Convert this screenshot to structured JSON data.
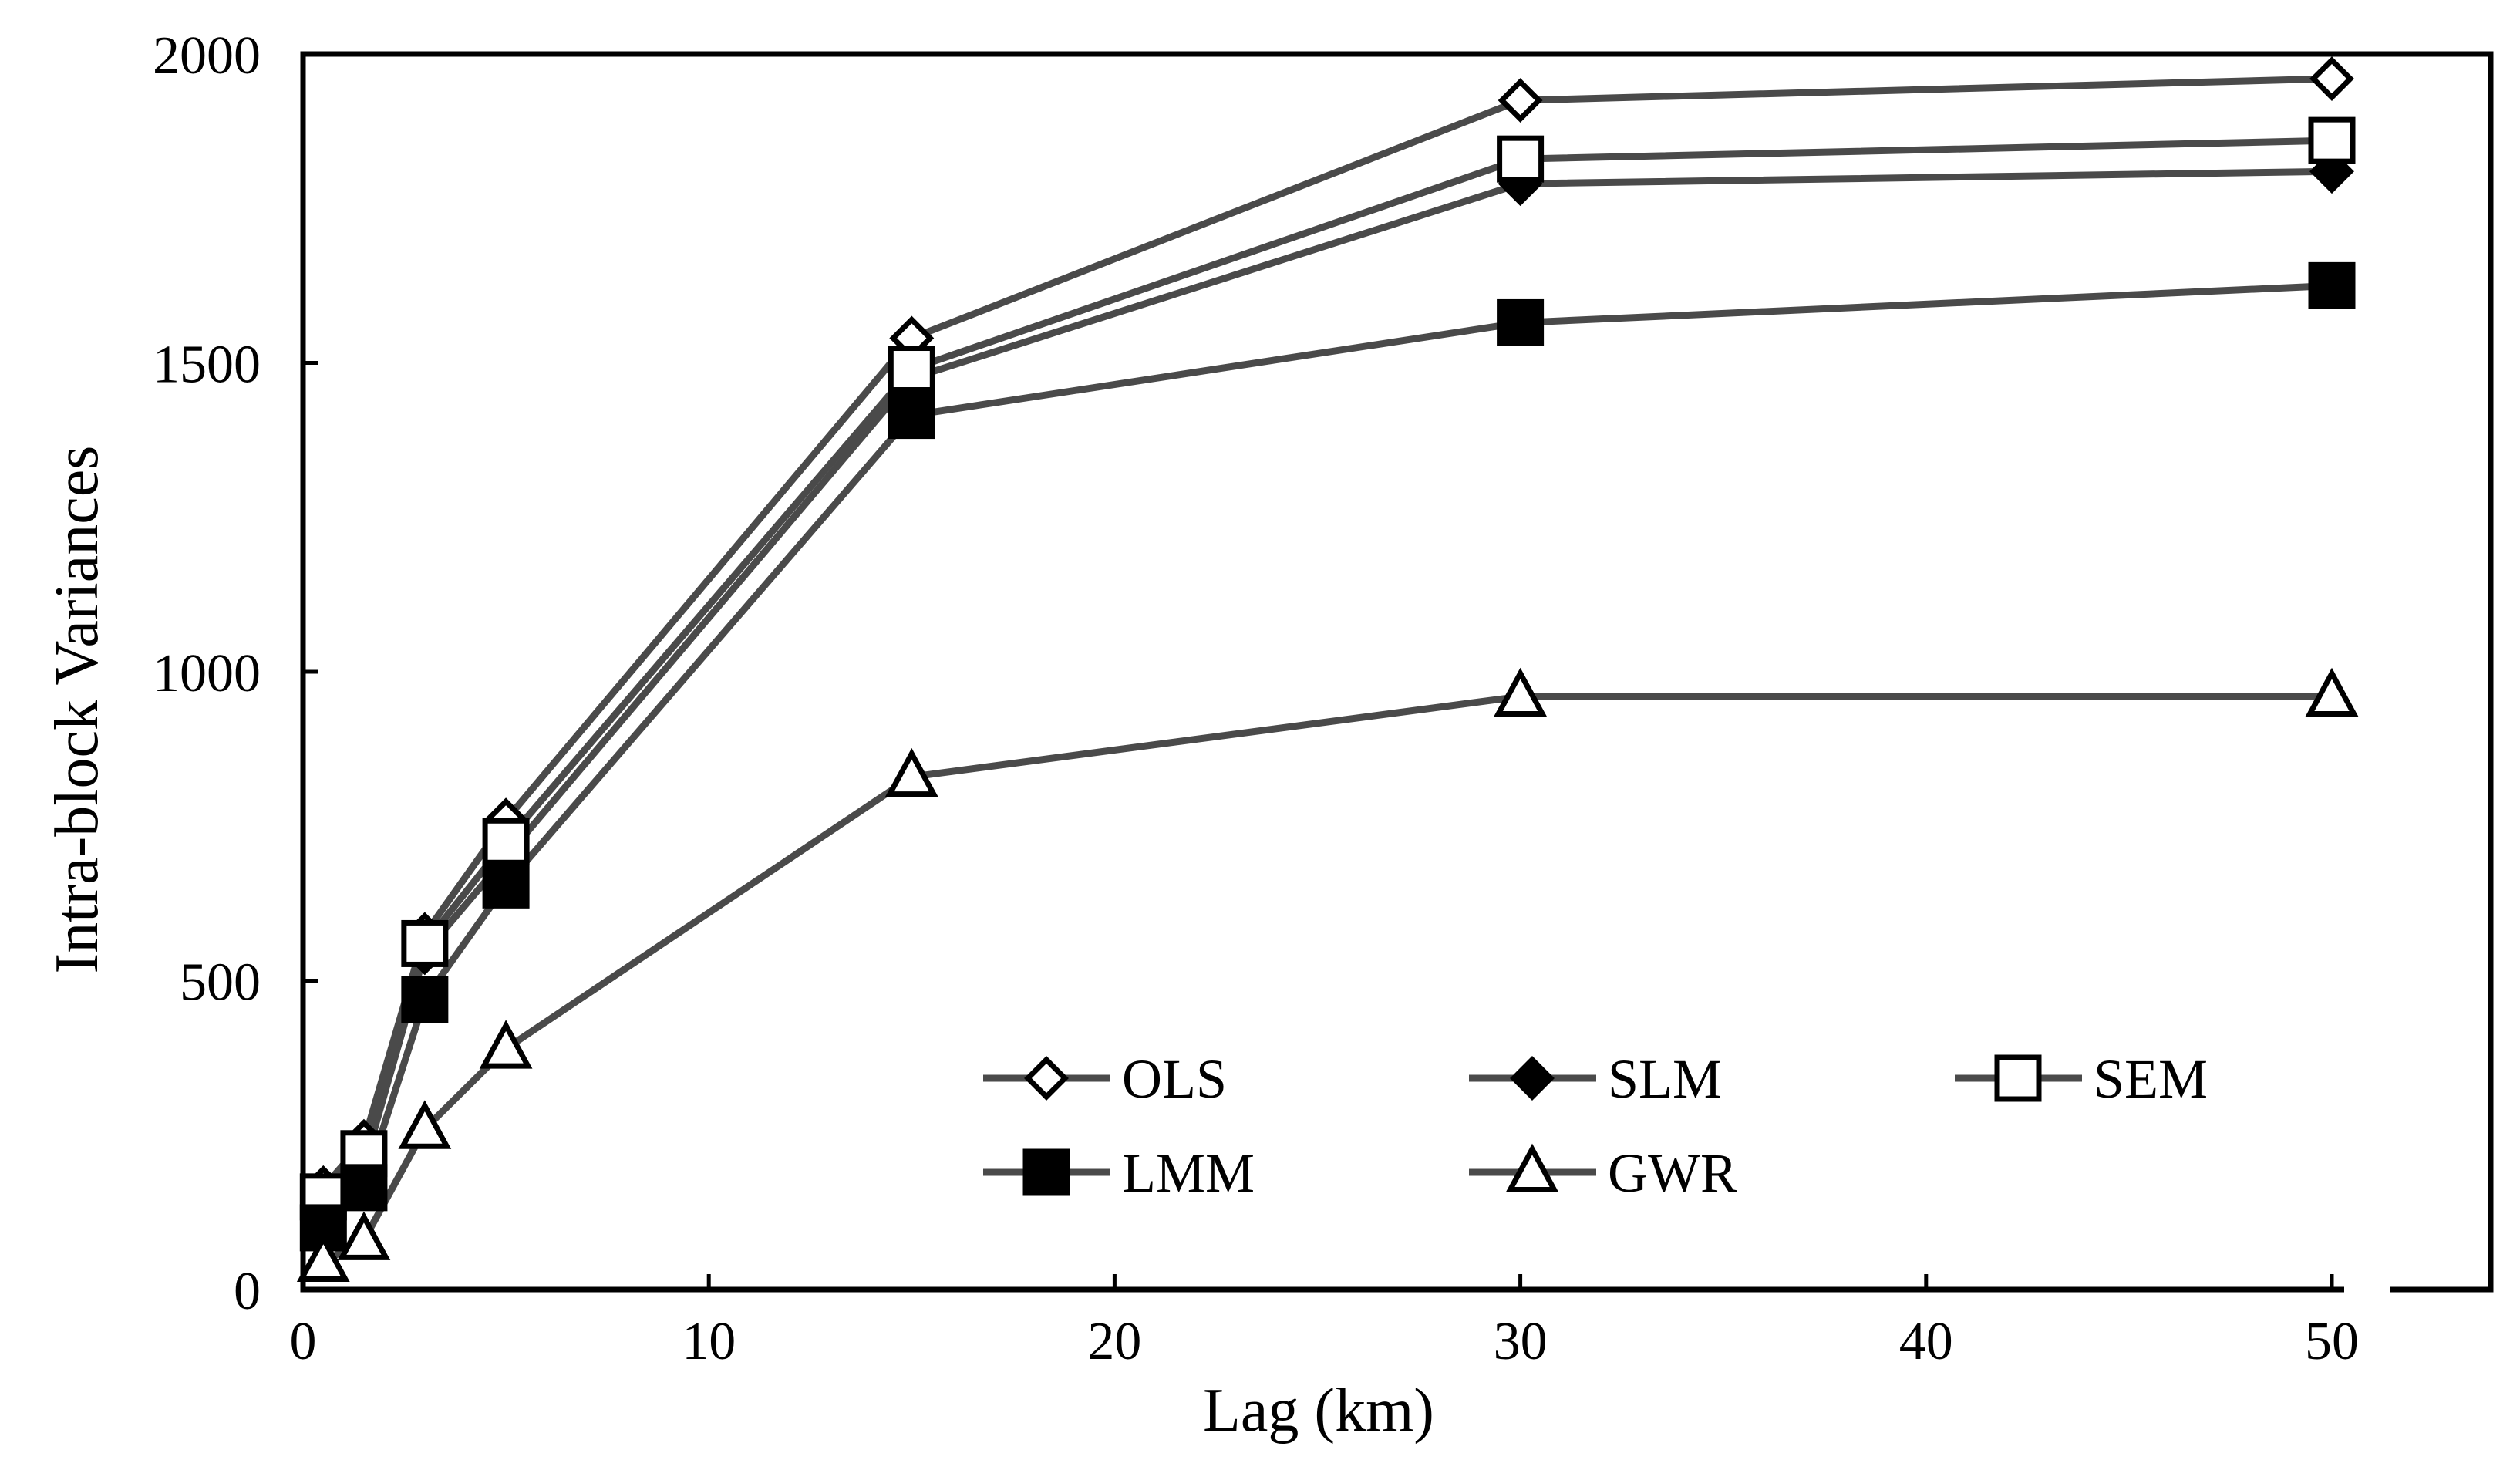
{
  "chart_data": {
    "type": "line",
    "title": "",
    "xlabel": "Lag (km)",
    "ylabel": "Intra-block Variances",
    "xlim": [
      0,
      55
    ],
    "ylim": [
      0,
      2000
    ],
    "xticks": [
      0,
      10,
      20,
      30,
      40,
      50
    ],
    "yticks": [
      0,
      500,
      1000,
      1500,
      2000
    ],
    "x": [
      0.5,
      1.5,
      3,
      5,
      15,
      30,
      50
    ],
    "grid": false,
    "legend_position": "bottom-right",
    "line_color": "#4a4a4a",
    "series": [
      {
        "name": "OLS",
        "marker": "diamond-open",
        "values": [
          165,
          240,
          575,
          760,
          1540,
          1925,
          1960
        ]
      },
      {
        "name": "SLM",
        "marker": "diamond-filled",
        "values": [
          150,
          200,
          545,
          700,
          1475,
          1790,
          1810
        ]
      },
      {
        "name": "SEM",
        "marker": "square-open",
        "values": [
          150,
          220,
          560,
          725,
          1490,
          1830,
          1860
        ]
      },
      {
        "name": "LMM",
        "marker": "square-filled",
        "values": [
          100,
          165,
          470,
          655,
          1415,
          1565,
          1625
        ]
      },
      {
        "name": "GWR",
        "marker": "triangle-open",
        "values": [
          45,
          80,
          260,
          390,
          830,
          960,
          960
        ]
      }
    ]
  }
}
